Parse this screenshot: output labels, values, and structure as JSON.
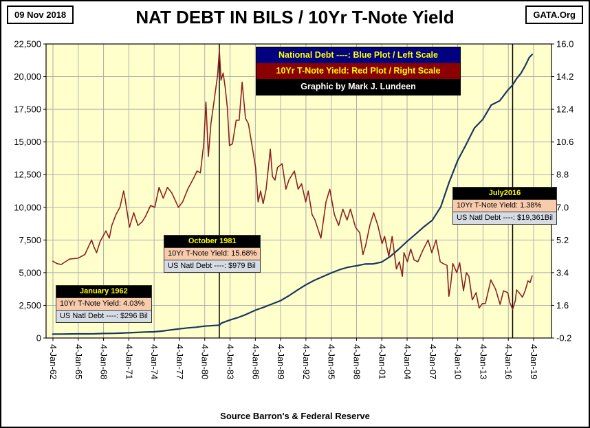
{
  "header": {
    "date": "09 Nov 2018",
    "title": "NAT DEBT IN BILS / 10Yr T-Note Yield",
    "site": "GATA.Org"
  },
  "legend": {
    "debt": "National Debt  ----: Blue Plot / Left Scale",
    "yield": "10Yr T-Note Yield: Red Plot / Right Scale",
    "credit": "Graphic by Mark J. Lundeen"
  },
  "annotations": [
    {
      "title": "January 1962",
      "yield_line": "10Yr T-Note Yield: 4.03%",
      "debt_line": "US Natl Debt ----: $296 Bil"
    },
    {
      "title": "October 1981",
      "yield_line": "10Yr T-Note Yield: 15.68%",
      "debt_line": "US Natl Debt ----: $979 Bil"
    },
    {
      "title": "July2016",
      "yield_line": "10Yr T-Note Yield: 1.38%",
      "debt_line": "US Natl Debt ----: $19,361Bil"
    }
  ],
  "footer": {
    "source": "Source Barron's & Federal Reserve"
  },
  "colors": {
    "plot_bg": "#FFFFCC",
    "grid": "#ADADAD",
    "marker_line": "#000000",
    "legend_debt_bg": "#000080",
    "legend_yield_bg": "#8B0000",
    "legend_credit_bg": "#000000",
    "legend_text": "#FFFF00",
    "legend_credit_text": "#FFFFFF",
    "ann_header_bg": "#000000",
    "ann_header_text": "#FFFF00",
    "ann_yield_bg": "#F8CBAD",
    "ann_debt_bg": "#D6DCE4"
  },
  "chart_data": {
    "type": "line",
    "title": "NAT DEBT IN BILS / 10Yr T-Note Yield",
    "grid": true,
    "legend_position": "top-center",
    "left_axis": {
      "title": "US National Debt (Billions $)",
      "min": 0,
      "max": 22500,
      "tick_labels": [
        "0",
        "2,500",
        "5,000",
        "7,500",
        "10,000",
        "12,500",
        "15,000",
        "17,500",
        "20,000",
        "22,500"
      ]
    },
    "right_axis": {
      "title": "10Yr T-Note Yield (%)",
      "min": -0.2,
      "max": 16.0,
      "tick_labels": [
        "-0.2",
        "1.6",
        "3.4",
        "5.2",
        "7.0",
        "8.8",
        "10.6",
        "12.4",
        "14.2",
        "16.0"
      ]
    },
    "x_axis": {
      "first_year": 1962.02,
      "last_year": 2019.02,
      "tick_labels": [
        "4-Jan-62",
        "4-Jan-65",
        "4-Jan-68",
        "4-Jan-71",
        "4-Jan-74",
        "4-Jan-77",
        "4-Jan-80",
        "4-Jan-83",
        "4-Jan-86",
        "4-Jan-89",
        "4-Jan-92",
        "4-Jan-95",
        "4-Jan-98",
        "4-Jan-01",
        "4-Jan-04",
        "4-Jan-07",
        "4-Jan-10",
        "4-Jan-13",
        "4-Jan-16",
        "4-Jan-19"
      ]
    },
    "markers": [
      {
        "label": "October 1981",
        "year": 1981.75
      },
      {
        "label": "July 2016",
        "year": 2016.53
      }
    ],
    "series": [
      {
        "name": "National Debt (Bil $)",
        "axis": "left",
        "color": "#17375E",
        "width": 2.2,
        "points": [
          [
            1962,
            296
          ],
          [
            1963,
            302
          ],
          [
            1964,
            308
          ],
          [
            1965,
            313
          ],
          [
            1966,
            316
          ],
          [
            1967,
            323
          ],
          [
            1968,
            345
          ],
          [
            1969,
            354
          ],
          [
            1970,
            371
          ],
          [
            1971,
            398
          ],
          [
            1972,
            427
          ],
          [
            1973,
            458
          ],
          [
            1974,
            475
          ],
          [
            1975,
            533
          ],
          [
            1976,
            620
          ],
          [
            1977,
            699
          ],
          [
            1978,
            772
          ],
          [
            1979,
            827
          ],
          [
            1980,
            908
          ],
          [
            1981.75,
            979
          ],
          [
            1982,
            1142
          ],
          [
            1983,
            1377
          ],
          [
            1984,
            1572
          ],
          [
            1985,
            1823
          ],
          [
            1986,
            2125
          ],
          [
            1987,
            2350
          ],
          [
            1988,
            2602
          ],
          [
            1989,
            2857
          ],
          [
            1990,
            3233
          ],
          [
            1991,
            3665
          ],
          [
            1992,
            4065
          ],
          [
            1993,
            4411
          ],
          [
            1994,
            4693
          ],
          [
            1995,
            4974
          ],
          [
            1996,
            5225
          ],
          [
            1997,
            5413
          ],
          [
            1998,
            5526
          ],
          [
            1999,
            5656
          ],
          [
            2000,
            5674
          ],
          [
            2001,
            5807
          ],
          [
            2002,
            6228
          ],
          [
            2003,
            6783
          ],
          [
            2004,
            7379
          ],
          [
            2005,
            7933
          ],
          [
            2006,
            8507
          ],
          [
            2007,
            9008
          ],
          [
            2008,
            10025
          ],
          [
            2009,
            11910
          ],
          [
            2010,
            13562
          ],
          [
            2011,
            14790
          ],
          [
            2012,
            16066
          ],
          [
            2013,
            16738
          ],
          [
            2014,
            17824
          ],
          [
            2015,
            18151
          ],
          [
            2016,
            19000
          ],
          [
            2016.53,
            19361
          ],
          [
            2017,
            19845
          ],
          [
            2017.5,
            20245
          ],
          [
            2018,
            20800
          ],
          [
            2018.5,
            21460
          ],
          [
            2018.85,
            21700
          ]
        ]
      },
      {
        "name": "10Yr T-Note Yield (%)",
        "axis": "right",
        "color": "#8B2020",
        "width": 1.6,
        "points": [
          [
            1962,
            4.03
          ],
          [
            1962.5,
            3.9
          ],
          [
            1963,
            3.85
          ],
          [
            1963.5,
            4.0
          ],
          [
            1964,
            4.15
          ],
          [
            1965,
            4.2
          ],
          [
            1965.8,
            4.4
          ],
          [
            1966.6,
            5.2
          ],
          [
            1966.9,
            4.8
          ],
          [
            1967.2,
            4.5
          ],
          [
            1967.6,
            5.1
          ],
          [
            1968.3,
            5.7
          ],
          [
            1968.7,
            5.3
          ],
          [
            1969,
            6.0
          ],
          [
            1969.5,
            6.6
          ],
          [
            1969.96,
            7.0
          ],
          [
            1970.4,
            7.9
          ],
          [
            1970.6,
            7.4
          ],
          [
            1971.1,
            5.9
          ],
          [
            1971.6,
            6.7
          ],
          [
            1972.1,
            6.0
          ],
          [
            1972.6,
            6.2
          ],
          [
            1973,
            6.5
          ],
          [
            1973.6,
            7.1
          ],
          [
            1974.1,
            7.0
          ],
          [
            1974.6,
            8.1
          ],
          [
            1975.1,
            7.5
          ],
          [
            1975.6,
            8.1
          ],
          [
            1976.1,
            7.8
          ],
          [
            1976.9,
            7.0
          ],
          [
            1977.4,
            7.3
          ],
          [
            1978,
            8.0
          ],
          [
            1978.7,
            8.6
          ],
          [
            1979.1,
            9.0
          ],
          [
            1979.5,
            8.9
          ],
          [
            1979.9,
            10.5
          ],
          [
            1980.16,
            12.8
          ],
          [
            1980.45,
            9.8
          ],
          [
            1980.75,
            11.6
          ],
          [
            1981.05,
            12.6
          ],
          [
            1981.35,
            13.6
          ],
          [
            1981.55,
            14.3
          ],
          [
            1981.75,
            15.68
          ],
          [
            1981.95,
            14.0
          ],
          [
            1982.2,
            14.4
          ],
          [
            1982.45,
            13.6
          ],
          [
            1982.7,
            12.5
          ],
          [
            1982.95,
            10.4
          ],
          [
            1983.3,
            10.5
          ],
          [
            1983.75,
            11.8
          ],
          [
            1984.1,
            11.8
          ],
          [
            1984.45,
            13.9
          ],
          [
            1984.85,
            11.9
          ],
          [
            1985.2,
            11.6
          ],
          [
            1985.7,
            10.2
          ],
          [
            1986.05,
            9.2
          ],
          [
            1986.35,
            7.3
          ],
          [
            1986.65,
            7.9
          ],
          [
            1986.95,
            7.2
          ],
          [
            1987.3,
            8.0
          ],
          [
            1987.8,
            10.2
          ],
          [
            1988.05,
            8.7
          ],
          [
            1988.35,
            8.5
          ],
          [
            1988.65,
            9.2
          ],
          [
            1989.2,
            9.4
          ],
          [
            1989.65,
            8.0
          ],
          [
            1990,
            8.5
          ],
          [
            1990.65,
            9.0
          ],
          [
            1991.1,
            8.0
          ],
          [
            1991.5,
            8.3
          ],
          [
            1992,
            7.3
          ],
          [
            1992.3,
            7.9
          ],
          [
            1992.75,
            6.6
          ],
          [
            1993.1,
            6.3
          ],
          [
            1993.8,
            5.3
          ],
          [
            1994.4,
            7.3
          ],
          [
            1994.85,
            8.0
          ],
          [
            1995.4,
            6.6
          ],
          [
            1995.9,
            6.0
          ],
          [
            1996.4,
            6.9
          ],
          [
            1996.9,
            6.3
          ],
          [
            1997.3,
            6.9
          ],
          [
            1997.9,
            5.9
          ],
          [
            1998.4,
            5.6
          ],
          [
            1998.78,
            4.4
          ],
          [
            1999.1,
            4.9
          ],
          [
            1999.6,
            6.0
          ],
          [
            2000.05,
            6.7
          ],
          [
            2000.55,
            6.0
          ],
          [
            2001.05,
            5.0
          ],
          [
            2001.35,
            5.4
          ],
          [
            2001.85,
            4.3
          ],
          [
            2002.25,
            5.4
          ],
          [
            2002.75,
            3.6
          ],
          [
            2003.1,
            4.0
          ],
          [
            2003.45,
            3.2
          ],
          [
            2003.65,
            4.5
          ],
          [
            2004.05,
            4.0
          ],
          [
            2004.45,
            4.7
          ],
          [
            2004.85,
            4.1
          ],
          [
            2005.3,
            4.0
          ],
          [
            2005.85,
            4.6
          ],
          [
            2006.5,
            5.2
          ],
          [
            2006.95,
            4.5
          ],
          [
            2007.45,
            5.2
          ],
          [
            2007.95,
            4.0
          ],
          [
            2008.3,
            3.9
          ],
          [
            2008.75,
            3.8
          ],
          [
            2008.97,
            2.1
          ],
          [
            2009.2,
            2.8
          ],
          [
            2009.45,
            3.9
          ],
          [
            2009.9,
            3.4
          ],
          [
            2010.25,
            3.95
          ],
          [
            2010.7,
            2.4
          ],
          [
            2011.05,
            3.4
          ],
          [
            2011.35,
            3.2
          ],
          [
            2011.75,
            1.9
          ],
          [
            2012.2,
            2.3
          ],
          [
            2012.55,
            1.45
          ],
          [
            2012.95,
            1.7
          ],
          [
            2013.3,
            1.7
          ],
          [
            2013.95,
            3.0
          ],
          [
            2014.5,
            2.5
          ],
          [
            2015.05,
            1.65
          ],
          [
            2015.45,
            2.4
          ],
          [
            2015.95,
            2.3
          ],
          [
            2016.2,
            1.75
          ],
          [
            2016.53,
            1.38
          ],
          [
            2016.85,
            1.85
          ],
          [
            2017,
            2.45
          ],
          [
            2017.3,
            2.3
          ],
          [
            2017.7,
            2.05
          ],
          [
            2018.05,
            2.45
          ],
          [
            2018.35,
            2.95
          ],
          [
            2018.6,
            2.85
          ],
          [
            2018.85,
            3.22
          ]
        ]
      }
    ]
  }
}
